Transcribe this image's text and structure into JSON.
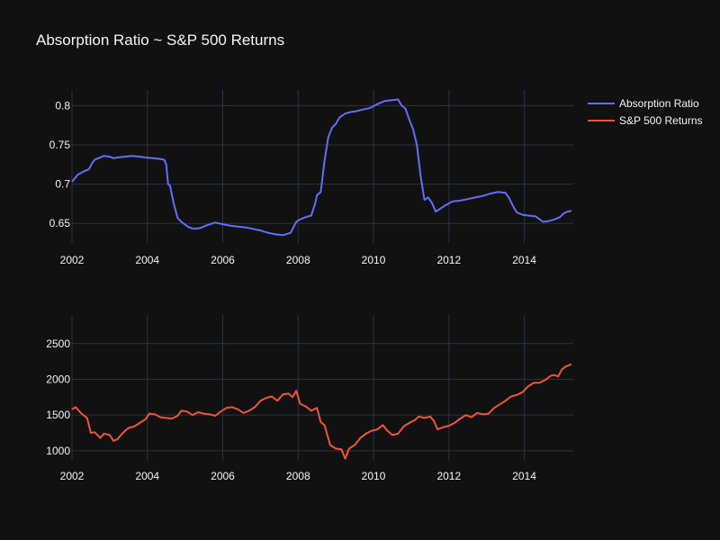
{
  "chart_data": {
    "title": "Absorption Ratio ~ S&P 500 Returns",
    "legend": {
      "placement": "top-right",
      "entries": [
        {
          "name": "Absorption Ratio",
          "color": "#636efa"
        },
        {
          "name": "S&P 500 Returns",
          "color": "#ef553b"
        }
      ]
    },
    "charts": [
      {
        "type": "line",
        "grid": true,
        "xlim": [
          2002.0,
          2015.3
        ],
        "ylim": [
          0.625,
          0.82
        ],
        "x_ticks": [
          2002,
          2004,
          2006,
          2008,
          2010,
          2012,
          2014
        ],
        "x_tick_labels": [
          "2002",
          "2004",
          "2006",
          "2008",
          "2010",
          "2012",
          "2014"
        ],
        "y_ticks": [
          0.65,
          0.7,
          0.75,
          0.8
        ],
        "y_tick_labels": [
          "0.65",
          "0.7",
          "0.75",
          "0.8"
        ],
        "series": [
          {
            "name": "Absorption Ratio",
            "color": "#636efa",
            "x": [
              2002.0,
              2002.15,
              2002.3,
              2002.45,
              2002.55,
              2002.6,
              2002.7,
              2002.85,
              2003.0,
              2003.1,
              2003.2,
              2003.4,
              2003.6,
              2003.8,
              2003.95,
              2004.15,
              2004.35,
              2004.45,
              2004.5,
              2004.55,
              2004.6,
              2004.7,
              2004.8,
              2004.9,
              2005.1,
              2005.25,
              2005.4,
              2005.6,
              2005.8,
              2006.0,
              2006.2,
              2006.4,
              2006.6,
              2006.8,
              2007.0,
              2007.2,
              2007.4,
              2007.6,
              2007.8,
              2007.95,
              2008.05,
              2008.2,
              2008.35,
              2008.45,
              2008.5,
              2008.6,
              2008.7,
              2008.8,
              2008.9,
              2009.0,
              2009.1,
              2009.25,
              2009.4,
              2009.55,
              2009.7,
              2009.9,
              2010.1,
              2010.3,
              2010.5,
              2010.65,
              2010.75,
              2010.85,
              2010.95,
              2011.05,
              2011.15,
              2011.25,
              2011.35,
              2011.45,
              2011.55,
              2011.65,
              2011.75,
              2011.9,
              2012.1,
              2012.3,
              2012.5,
              2012.7,
              2012.9,
              2013.1,
              2013.3,
              2013.5,
              2013.6,
              2013.7,
              2013.8,
              2013.95,
              2014.1,
              2014.3,
              2014.5,
              2014.65,
              2014.8,
              2014.95,
              2015.05,
              2015.15,
              2015.25
            ],
            "values": [
              0.703,
              0.712,
              0.716,
              0.719,
              0.728,
              0.731,
              0.733,
              0.736,
              0.735,
              0.733,
              0.734,
              0.735,
              0.736,
              0.735,
              0.734,
              0.733,
              0.732,
              0.731,
              0.725,
              0.7,
              0.698,
              0.675,
              0.657,
              0.652,
              0.645,
              0.643,
              0.644,
              0.648,
              0.651,
              0.649,
              0.647,
              0.646,
              0.645,
              0.643,
              0.641,
              0.638,
              0.636,
              0.635,
              0.638,
              0.652,
              0.655,
              0.658,
              0.66,
              0.675,
              0.686,
              0.69,
              0.73,
              0.76,
              0.772,
              0.777,
              0.785,
              0.79,
              0.792,
              0.793,
              0.795,
              0.797,
              0.802,
              0.806,
              0.807,
              0.808,
              0.8,
              0.796,
              0.782,
              0.77,
              0.75,
              0.71,
              0.68,
              0.683,
              0.676,
              0.665,
              0.668,
              0.673,
              0.678,
              0.679,
              0.681,
              0.683,
              0.685,
              0.688,
              0.69,
              0.689,
              0.682,
              0.672,
              0.664,
              0.661,
              0.66,
              0.659,
              0.652,
              0.653,
              0.655,
              0.658,
              0.663,
              0.665,
              0.666
            ]
          }
        ]
      },
      {
        "type": "line",
        "grid": true,
        "xlim": [
          2002.0,
          2015.3
        ],
        "ylim": [
          860,
          2900
        ],
        "x_ticks": [
          2002,
          2004,
          2006,
          2008,
          2010,
          2012,
          2014
        ],
        "x_tick_labels": [
          "2002",
          "2004",
          "2006",
          "2008",
          "2010",
          "2012",
          "2014"
        ],
        "y_ticks": [
          1000,
          1500,
          2000,
          2500
        ],
        "y_tick_labels": [
          "1000",
          "1500",
          "2000",
          "2500"
        ],
        "series": [
          {
            "name": "S&P 500 Returns",
            "color": "#ef553b",
            "x": [
              2002.0,
              2002.1,
              2002.25,
              2002.4,
              2002.5,
              2002.6,
              2002.75,
              2002.85,
              2003.0,
              2003.1,
              2003.2,
              2003.35,
              2003.5,
              2003.65,
              2003.8,
              2003.95,
              2004.05,
              2004.2,
              2004.35,
              2004.5,
              2004.65,
              2004.8,
              2004.9,
              2005.05,
              2005.2,
              2005.35,
              2005.5,
              2005.65,
              2005.8,
              2005.95,
              2006.1,
              2006.25,
              2006.4,
              2006.55,
              2006.7,
              2006.85,
              2007.0,
              2007.15,
              2007.3,
              2007.45,
              2007.6,
              2007.75,
              2007.85,
              2007.95,
              2008.05,
              2008.2,
              2008.35,
              2008.5,
              2008.6,
              2008.7,
              2008.85,
              2009.0,
              2009.15,
              2009.25,
              2009.35,
              2009.5,
              2009.65,
              2009.8,
              2009.95,
              2010.1,
              2010.25,
              2010.35,
              2010.5,
              2010.65,
              2010.8,
              2010.95,
              2011.1,
              2011.2,
              2011.35,
              2011.5,
              2011.6,
              2011.7,
              2011.85,
              2012.0,
              2012.15,
              2012.3,
              2012.45,
              2012.6,
              2012.75,
              2012.9,
              2013.05,
              2013.2,
              2013.35,
              2013.5,
              2013.65,
              2013.8,
              2013.95,
              2014.1,
              2014.25,
              2014.4,
              2014.55,
              2014.7,
              2014.8,
              2014.9,
              2015.0,
              2015.1,
              2015.2,
              2015.25
            ],
            "values": [
              1580,
              1610,
              1520,
              1460,
              1250,
              1260,
              1180,
              1240,
              1220,
              1140,
              1160,
              1250,
              1320,
              1340,
              1390,
              1440,
              1520,
              1510,
              1470,
              1460,
              1450,
              1490,
              1560,
              1550,
              1500,
              1540,
              1520,
              1510,
              1490,
              1550,
              1600,
              1610,
              1580,
              1530,
              1560,
              1610,
              1700,
              1740,
              1760,
              1700,
              1790,
              1800,
              1750,
              1840,
              1660,
              1620,
              1560,
              1600,
              1400,
              1360,
              1080,
              1030,
              1020,
              890,
              1030,
              1080,
              1180,
              1240,
              1280,
              1300,
              1360,
              1290,
              1220,
              1240,
              1340,
              1390,
              1430,
              1480,
              1460,
              1480,
              1420,
              1300,
              1330,
              1350,
              1390,
              1450,
              1500,
              1470,
              1530,
              1510,
              1520,
              1600,
              1650,
              1700,
              1760,
              1780,
              1820,
              1900,
              1950,
              1950,
              1990,
              2050,
              2060,
              2040,
              2140,
              2180,
              2200,
              2210
            ]
          }
        ]
      }
    ]
  }
}
